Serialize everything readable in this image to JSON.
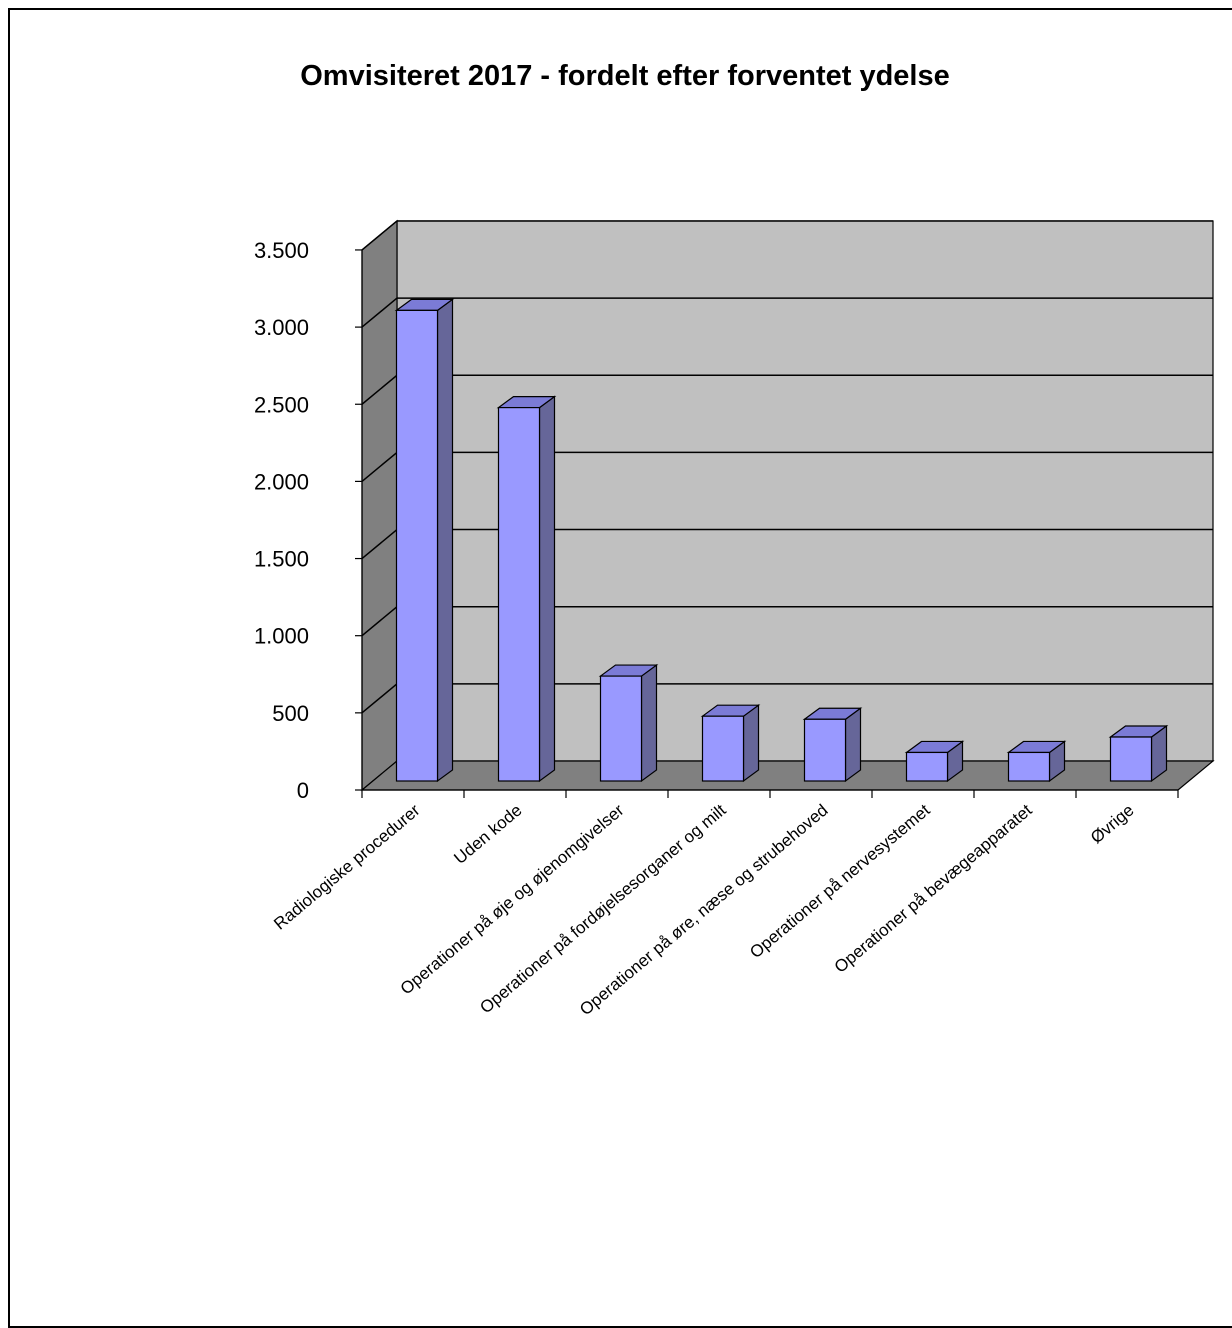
{
  "chart_data": {
    "type": "bar",
    "style": "3d-column",
    "title": "Omvisiteret 2017 - fordelt efter forventet ydelse",
    "xlabel": "",
    "ylabel": "",
    "ylim": [
      0,
      3500
    ],
    "yticks": [
      0,
      500,
      1000,
      1500,
      2000,
      2500,
      3000,
      3500
    ],
    "ytick_labels": [
      "0",
      "500",
      "1.000",
      "1.500",
      "2.000",
      "2.500",
      "3.000",
      "3.500"
    ],
    "categories": [
      "Radiologiske procedurer",
      "Uden kode",
      "Operationer på øje og øjenomgivelser",
      "Operationer på fordøjelsesorganer og milt",
      "Operationer på øre, næse og strubehoved",
      "Operationer på nervesystemet",
      "Operationer på bevægeapparatet",
      "Øvrige"
    ],
    "values": [
      3050,
      2420,
      680,
      420,
      400,
      185,
      185,
      285
    ],
    "grid": true,
    "legend": "none",
    "colors": {
      "bar_front": "#9999ff",
      "bar_side": "#666699",
      "bar_top": "#7b7bd6",
      "back_wall": "#c0c0c0",
      "side_wall": "#808080",
      "floor": "#808080"
    }
  }
}
